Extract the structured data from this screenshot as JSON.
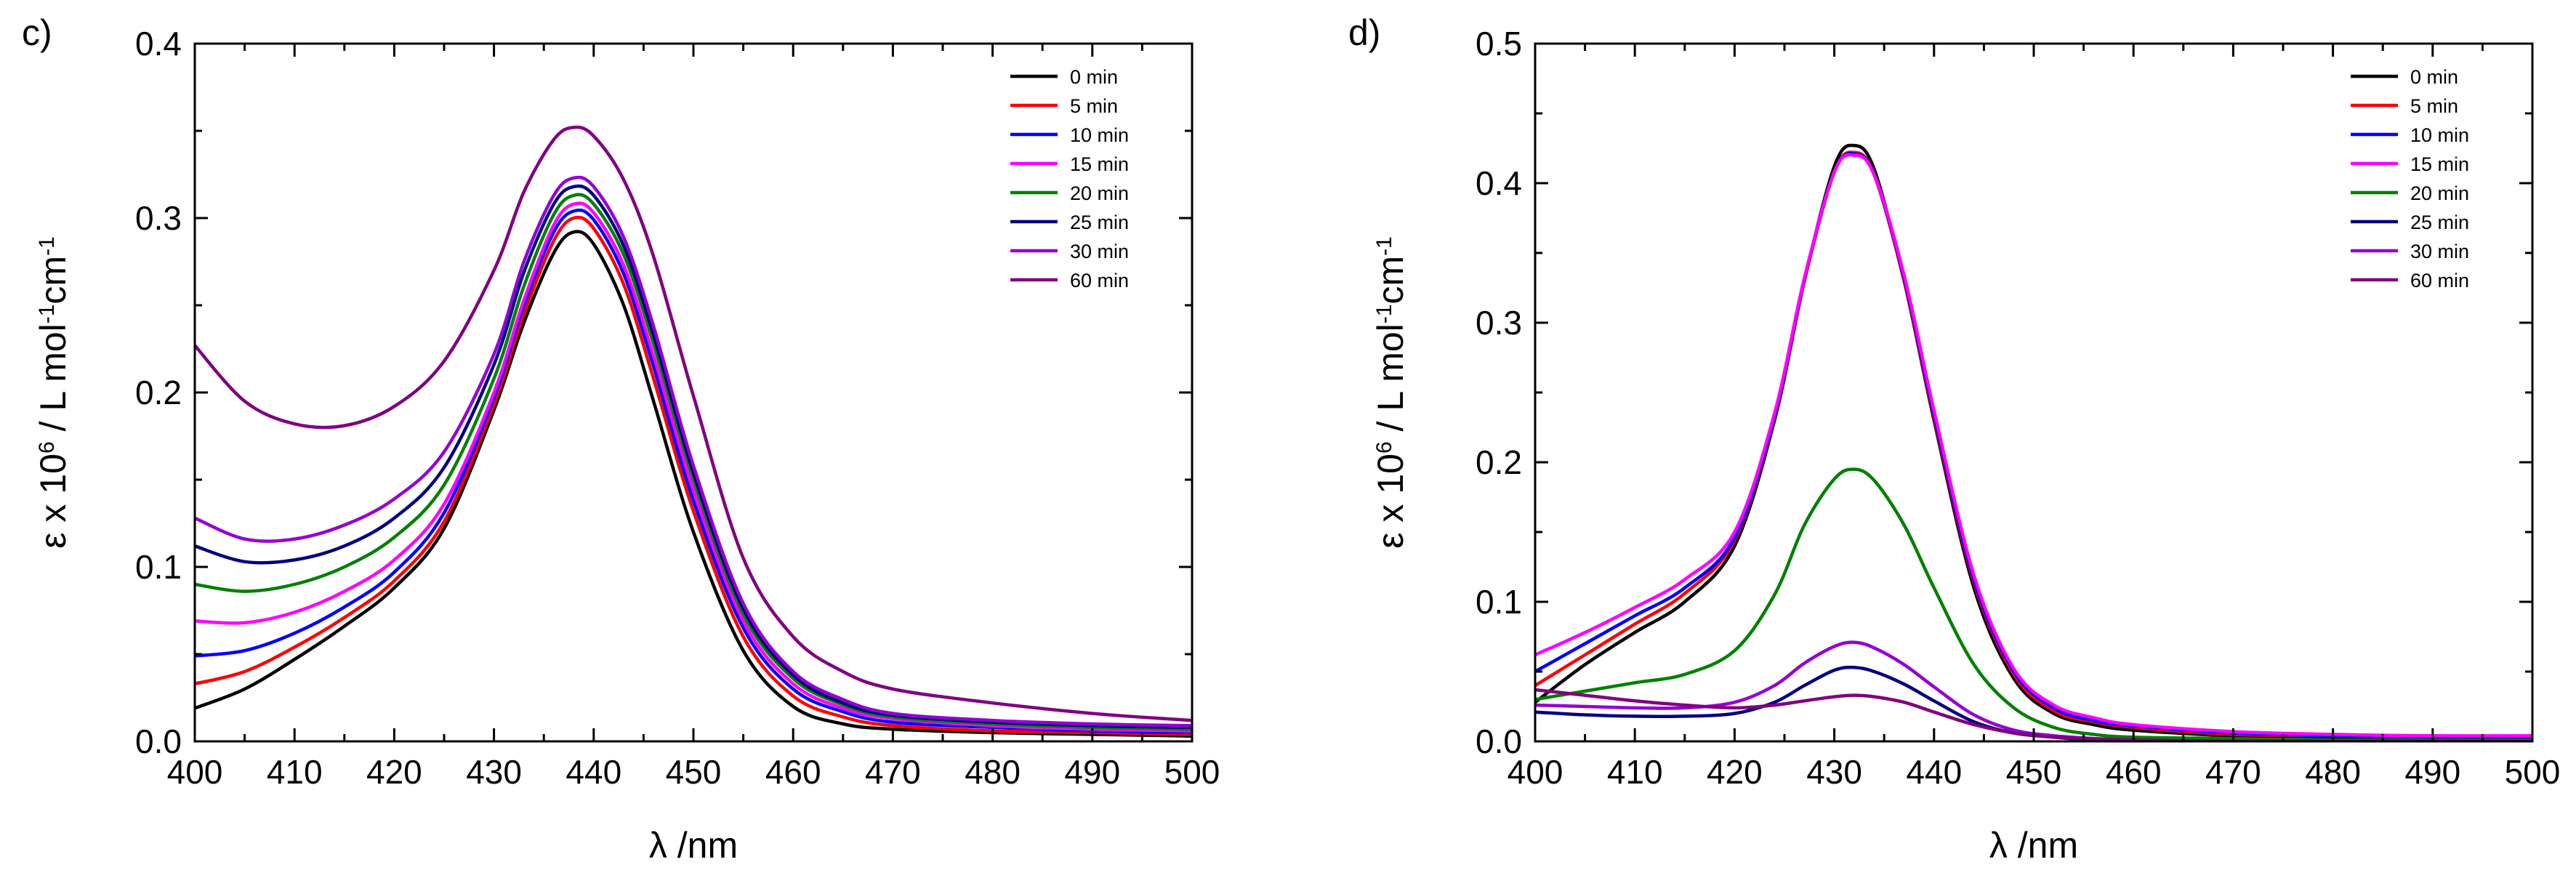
{
  "chart_data": [
    {
      "type": "line",
      "panel_label": "c)",
      "xlabel": "λ /nm",
      "ylabel_parts": [
        "ε x 10",
        "6",
        " / L mol",
        "-1",
        "cm",
        "-1"
      ],
      "xlim": [
        400,
        500
      ],
      "ylim": [
        0,
        0.4
      ],
      "x_ticks": [
        400,
        410,
        420,
        430,
        440,
        450,
        460,
        470,
        480,
        490,
        500
      ],
      "x_tick_labels": [
        "400",
        "410",
        "420",
        "430",
        "440",
        "450",
        "460",
        "470",
        "480",
        "490",
        "500"
      ],
      "y_ticks": [
        0,
        0.1,
        0.2,
        0.3,
        0.4
      ],
      "y_tick_labels": [
        "0.0",
        "0.1",
        "0.2",
        "0.3",
        "0.4"
      ],
      "legend_position": "top-right",
      "grid": false,
      "series": [
        {
          "name": "0 min",
          "color": "#000000",
          "x": [
            400,
            405,
            410,
            415,
            420,
            425,
            430,
            433,
            436,
            438,
            440,
            443,
            446,
            450,
            455,
            460,
            465,
            470,
            480,
            490,
            500
          ],
          "y": [
            0.019,
            0.03,
            0.047,
            0.066,
            0.088,
            0.122,
            0.19,
            0.24,
            0.28,
            0.292,
            0.285,
            0.25,
            0.195,
            0.12,
            0.052,
            0.02,
            0.01,
            0.007,
            0.005,
            0.004,
            0.003
          ]
        },
        {
          "name": "5 min",
          "color": "#ff0000",
          "x": [
            400,
            405,
            410,
            415,
            420,
            425,
            430,
            433,
            436,
            438,
            440,
            443,
            446,
            450,
            455,
            460,
            465,
            470,
            480,
            490,
            500
          ],
          "y": [
            0.033,
            0.04,
            0.054,
            0.071,
            0.092,
            0.126,
            0.193,
            0.245,
            0.287,
            0.3,
            0.294,
            0.262,
            0.208,
            0.132,
            0.06,
            0.026,
            0.014,
            0.009,
            0.006,
            0.005,
            0.004
          ]
        },
        {
          "name": "10 min",
          "color": "#0000ff",
          "x": [
            400,
            405,
            410,
            415,
            420,
            425,
            430,
            433,
            436,
            438,
            440,
            443,
            446,
            450,
            455,
            460,
            465,
            470,
            480,
            490,
            500
          ],
          "y": [
            0.049,
            0.052,
            0.062,
            0.077,
            0.097,
            0.131,
            0.197,
            0.25,
            0.292,
            0.304,
            0.299,
            0.268,
            0.215,
            0.138,
            0.065,
            0.03,
            0.017,
            0.011,
            0.008,
            0.006,
            0.005
          ]
        },
        {
          "name": "15 min",
          "color": "#ff00ff",
          "x": [
            400,
            405,
            410,
            415,
            420,
            425,
            430,
            433,
            436,
            438,
            440,
            443,
            446,
            450,
            455,
            460,
            465,
            470,
            480,
            490,
            500
          ],
          "y": [
            0.069,
            0.068,
            0.074,
            0.086,
            0.104,
            0.136,
            0.2,
            0.253,
            0.296,
            0.308,
            0.303,
            0.273,
            0.221,
            0.144,
            0.069,
            0.033,
            0.019,
            0.013,
            0.009,
            0.007,
            0.006
          ]
        },
        {
          "name": "20 min",
          "color": "#008000",
          "x": [
            400,
            405,
            410,
            415,
            420,
            425,
            430,
            433,
            436,
            438,
            440,
            443,
            446,
            450,
            455,
            460,
            465,
            470,
            480,
            490,
            500
          ],
          "y": [
            0.09,
            0.086,
            0.09,
            0.1,
            0.117,
            0.147,
            0.208,
            0.261,
            0.302,
            0.313,
            0.308,
            0.279,
            0.228,
            0.15,
            0.073,
            0.036,
            0.021,
            0.014,
            0.01,
            0.008,
            0.007
          ]
        },
        {
          "name": "25 min",
          "color": "#000080",
          "x": [
            400,
            405,
            410,
            415,
            420,
            425,
            430,
            433,
            436,
            438,
            440,
            443,
            446,
            450,
            455,
            460,
            465,
            470,
            480,
            490,
            500
          ],
          "y": [
            0.112,
            0.103,
            0.104,
            0.112,
            0.128,
            0.157,
            0.216,
            0.269,
            0.308,
            0.318,
            0.313,
            0.284,
            0.233,
            0.154,
            0.076,
            0.038,
            0.022,
            0.015,
            0.011,
            0.009,
            0.008
          ]
        },
        {
          "name": "30 min",
          "color": "#9400d3",
          "x": [
            400,
            405,
            410,
            415,
            420,
            425,
            430,
            433,
            436,
            438,
            440,
            443,
            446,
            450,
            455,
            460,
            465,
            470,
            480,
            490,
            500
          ],
          "y": [
            0.128,
            0.116,
            0.116,
            0.124,
            0.139,
            0.166,
            0.222,
            0.275,
            0.313,
            0.323,
            0.318,
            0.289,
            0.238,
            0.158,
            0.079,
            0.04,
            0.024,
            0.016,
            0.012,
            0.01,
            0.009
          ]
        },
        {
          "name": "60 min",
          "color": "#800080",
          "x": [
            400,
            405,
            410,
            415,
            420,
            425,
            430,
            433,
            436,
            438,
            440,
            443,
            446,
            450,
            455,
            460,
            465,
            470,
            480,
            490,
            500
          ],
          "y": [
            0.227,
            0.195,
            0.182,
            0.181,
            0.192,
            0.218,
            0.27,
            0.315,
            0.345,
            0.352,
            0.347,
            0.322,
            0.278,
            0.198,
            0.105,
            0.06,
            0.04,
            0.03,
            0.022,
            0.016,
            0.012
          ]
        }
      ]
    },
    {
      "type": "line",
      "panel_label": "d)",
      "xlabel": "λ /nm",
      "ylabel_parts": [
        "ε x 10",
        "6",
        " / L mol",
        "-1",
        "cm",
        "-1"
      ],
      "xlim": [
        400,
        500
      ],
      "ylim": [
        0,
        0.5
      ],
      "x_ticks": [
        400,
        410,
        420,
        430,
        440,
        450,
        460,
        470,
        480,
        490,
        500
      ],
      "x_tick_labels": [
        "400",
        "410",
        "420",
        "430",
        "440",
        "450",
        "460",
        "470",
        "480",
        "490",
        "500"
      ],
      "y_ticks": [
        0,
        0.1,
        0.2,
        0.3,
        0.4,
        0.5
      ],
      "y_tick_labels": [
        "0.0",
        "0.1",
        "0.2",
        "0.3",
        "0.4",
        "0.5"
      ],
      "legend_position": "top-right",
      "grid": false,
      "series": [
        {
          "name": "0 min",
          "color": "#000000",
          "x": [
            400,
            405,
            410,
            415,
            420,
            424,
            427,
            430,
            432,
            434,
            437,
            440,
            444,
            448,
            452,
            456,
            460,
            470,
            480,
            490,
            500
          ],
          "y": [
            0.028,
            0.055,
            0.078,
            0.1,
            0.14,
            0.23,
            0.33,
            0.412,
            0.427,
            0.41,
            0.33,
            0.23,
            0.11,
            0.045,
            0.02,
            0.012,
            0.008,
            0.004,
            0.003,
            0.002,
            0.002
          ]
        },
        {
          "name": "5 min",
          "color": "#ff0000",
          "x": [
            400,
            405,
            410,
            415,
            420,
            424,
            427,
            430,
            432,
            434,
            437,
            440,
            444,
            448,
            452,
            456,
            460,
            470,
            480,
            490,
            500
          ],
          "y": [
            0.04,
            0.062,
            0.084,
            0.106,
            0.144,
            0.232,
            0.33,
            0.408,
            0.422,
            0.406,
            0.33,
            0.232,
            0.114,
            0.048,
            0.022,
            0.014,
            0.01,
            0.005,
            0.004,
            0.003,
            0.003
          ]
        },
        {
          "name": "10 min",
          "color": "#0000ff",
          "x": [
            400,
            405,
            410,
            415,
            420,
            424,
            427,
            430,
            432,
            434,
            437,
            440,
            444,
            448,
            452,
            456,
            460,
            470,
            480,
            490,
            500
          ],
          "y": [
            0.05,
            0.07,
            0.09,
            0.11,
            0.146,
            0.233,
            0.331,
            0.408,
            0.421,
            0.406,
            0.332,
            0.234,
            0.116,
            0.05,
            0.024,
            0.015,
            0.011,
            0.006,
            0.004,
            0.003,
            0.003
          ]
        },
        {
          "name": "15 min",
          "color": "#ff00ff",
          "x": [
            400,
            405,
            410,
            415,
            420,
            424,
            427,
            430,
            432,
            434,
            437,
            440,
            444,
            448,
            452,
            456,
            460,
            470,
            480,
            490,
            500
          ],
          "y": [
            0.062,
            0.078,
            0.096,
            0.116,
            0.15,
            0.235,
            0.332,
            0.408,
            0.42,
            0.406,
            0.334,
            0.237,
            0.119,
            0.052,
            0.026,
            0.017,
            0.012,
            0.007,
            0.005,
            0.004,
            0.004
          ]
        },
        {
          "name": "20 min",
          "color": "#008000",
          "x": [
            400,
            405,
            410,
            415,
            420,
            424,
            427,
            430,
            432,
            434,
            437,
            440,
            444,
            448,
            452,
            456,
            460,
            470,
            480,
            490,
            500
          ],
          "y": [
            0.03,
            0.036,
            0.042,
            0.048,
            0.065,
            0.105,
            0.155,
            0.188,
            0.195,
            0.187,
            0.155,
            0.11,
            0.055,
            0.024,
            0.01,
            0.005,
            0.003,
            0.002,
            0.001,
            0.001,
            0.001
          ]
        },
        {
          "name": "25 min",
          "color": "#000080",
          "x": [
            400,
            405,
            410,
            415,
            420,
            424,
            427,
            430,
            432,
            434,
            437,
            440,
            444,
            448,
            452,
            456,
            460,
            470,
            480,
            490,
            500
          ],
          "y": [
            0.021,
            0.019,
            0.018,
            0.018,
            0.02,
            0.028,
            0.04,
            0.051,
            0.053,
            0.05,
            0.041,
            0.029,
            0.014,
            0.006,
            0.003,
            0.001,
            0.001,
            0.0,
            0.0,
            0.0,
            0.0
          ]
        },
        {
          "name": "30 min",
          "color": "#9400d3",
          "x": [
            400,
            405,
            410,
            415,
            420,
            424,
            427,
            430,
            432,
            434,
            437,
            440,
            444,
            448,
            452,
            456,
            460,
            470,
            480,
            490,
            500
          ],
          "y": [
            0.026,
            0.025,
            0.024,
            0.024,
            0.028,
            0.04,
            0.056,
            0.068,
            0.071,
            0.067,
            0.055,
            0.039,
            0.019,
            0.008,
            0.004,
            0.002,
            0.001,
            0.0,
            0.0,
            0.0,
            0.0
          ]
        },
        {
          "name": "60 min",
          "color": "#800080",
          "x": [
            400,
            405,
            410,
            415,
            420,
            424,
            427,
            430,
            432,
            434,
            437,
            440,
            444,
            448,
            452,
            456,
            460,
            470,
            480,
            490,
            500
          ],
          "y": [
            0.037,
            0.033,
            0.029,
            0.026,
            0.024,
            0.026,
            0.029,
            0.032,
            0.033,
            0.032,
            0.028,
            0.021,
            0.012,
            0.006,
            0.003,
            0.002,
            0.001,
            0.0,
            0.0,
            0.0,
            0.0
          ]
        }
      ]
    }
  ]
}
